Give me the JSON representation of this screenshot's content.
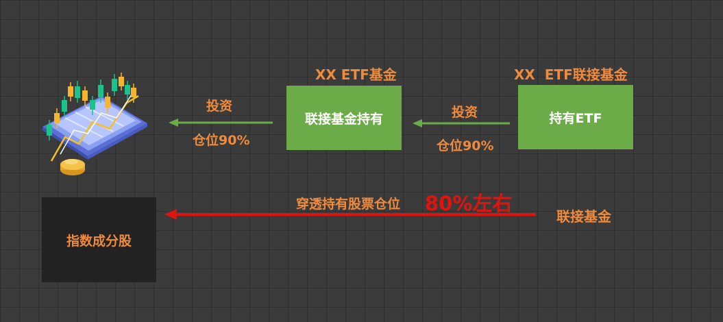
{
  "etf_title": "XX ETF基金",
  "link_title": "XX  ETF联接基金",
  "box_link_holding": "联接基金持有",
  "box_hold_etf": "持有ETF",
  "box_index_stocks": "指数成分股",
  "arrow_left": {
    "top": "投资",
    "bottom": "仓位90%"
  },
  "arrow_right": {
    "top": "投资",
    "bottom": "仓位90%"
  },
  "penetration": {
    "label": "穿透持有股票仓位",
    "value": "80%左右",
    "source": "联接基金"
  },
  "colors": {
    "green": "#6cac48",
    "orange": "#f08a3c",
    "red": "#e0140f",
    "dark_box": "#222222"
  },
  "illustration": "stock-chart-tablet-icon"
}
